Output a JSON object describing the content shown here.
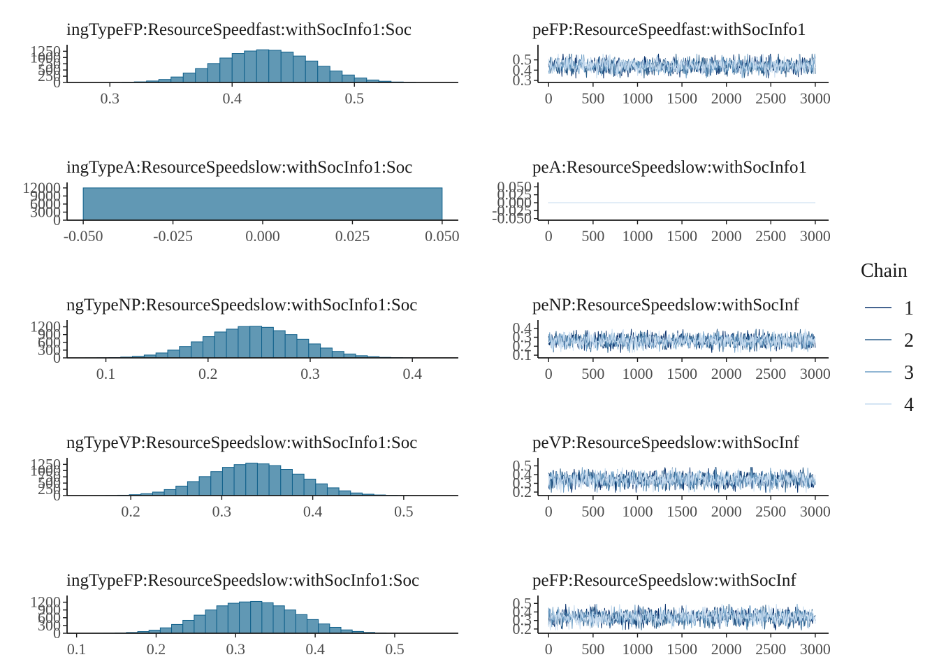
{
  "colors": {
    "hist_fill": "#6198b4",
    "hist_stroke": "#0f5f8a",
    "axis": "#1a1a1a",
    "chain_1": "#08306b",
    "chain_2": "#2c5f8a",
    "chain_3": "#6f9fc6",
    "chain_4": "#c6dbef"
  },
  "legend": {
    "title": "Chain",
    "items": [
      "1",
      "2",
      "3",
      "4"
    ]
  },
  "chart_data": [
    {
      "type": "bar",
      "kind": "histogram",
      "title": "ingTypeFP:ResourceSpeedfast:withSocInfo1:Soc",
      "xlim": [
        0.265,
        0.585
      ],
      "ylim": [
        0,
        1400
      ],
      "xticks": [
        0.3,
        0.4,
        0.5
      ],
      "xtick_labels": [
        "0.3",
        "0.4",
        "0.5"
      ],
      "yticks": [
        0,
        250,
        500,
        750,
        1000,
        1250
      ],
      "ytick_labels": [
        "0",
        "250",
        "500",
        "750",
        "1000",
        "1250"
      ],
      "bin_start": 0.3,
      "bin_width": 0.01,
      "values": [
        3,
        10,
        25,
        60,
        120,
        220,
        380,
        560,
        760,
        980,
        1160,
        1260,
        1310,
        1290,
        1220,
        1060,
        860,
        650,
        460,
        300,
        180,
        100,
        50,
        20,
        8
      ]
    },
    {
      "type": "line",
      "kind": "trace",
      "title": "peFP:ResourceSpeedfast:withSocInfo1",
      "xlim": [
        -120,
        3150
      ],
      "ylim": [
        0.28,
        0.62
      ],
      "xticks": [
        0,
        500,
        1000,
        1500,
        2000,
        2500,
        3000
      ],
      "xtick_labels": [
        "0",
        "500",
        "1000",
        "1500",
        "2000",
        "2500",
        "3000"
      ],
      "yticks": [
        0.3,
        0.4,
        0.5
      ],
      "ytick_labels": [
        "0.3",
        "0.4",
        "0.5"
      ],
      "iterations": 3000,
      "chains": [
        "1",
        "2",
        "3",
        "4"
      ],
      "center": 0.44,
      "spread": 0.045,
      "constant": false
    },
    {
      "type": "bar",
      "kind": "histogram",
      "title": "ingTypeA:ResourceSpeedslow:withSocInfo1:Soc",
      "xlim": [
        -0.0545,
        0.0545
      ],
      "ylim": [
        0,
        13000
      ],
      "xticks": [
        -0.05,
        -0.025,
        0,
        0.025,
        0.05
      ],
      "xtick_labels": [
        "-0.050",
        "-0.025",
        "0.000",
        "0.025",
        "0.050"
      ],
      "yticks": [
        0,
        3000,
        6000,
        9000,
        12000
      ],
      "ytick_labels": [
        "0",
        "3000",
        "6000",
        "9000",
        "12000"
      ],
      "bin_start": -0.05,
      "bin_width": 0.1,
      "values": [
        12000
      ]
    },
    {
      "type": "line",
      "kind": "trace",
      "title": "peA:ResourceSpeedslow:withSocInfo1",
      "xlim": [
        -120,
        3150
      ],
      "ylim": [
        -0.055,
        0.055
      ],
      "xticks": [
        0,
        500,
        1000,
        1500,
        2000,
        2500,
        3000
      ],
      "xtick_labels": [
        "0",
        "500",
        "1000",
        "1500",
        "2000",
        "2500",
        "3000"
      ],
      "yticks": [
        -0.05,
        -0.025,
        0,
        0.025,
        0.05
      ],
      "ytick_labels": [
        "-0.050",
        "-0.025",
        "0.000",
        "0.025",
        "0.050"
      ],
      "iterations": 3000,
      "chains": [
        "1",
        "2",
        "3",
        "4"
      ],
      "center": 0.0,
      "spread": 0,
      "constant": true
    },
    {
      "type": "bar",
      "kind": "histogram",
      "title": "ngTypeNP:ResourceSpeedslow:withSocInfo1:Soc",
      "xlim": [
        0.062,
        0.445
      ],
      "ylim": [
        0,
        1350
      ],
      "xticks": [
        0.1,
        0.2,
        0.3,
        0.4
      ],
      "xtick_labels": [
        "0.1",
        "0.2",
        "0.3",
        "0.4"
      ],
      "yticks": [
        0,
        300,
        600,
        900,
        1200
      ],
      "ytick_labels": [
        "0",
        "300",
        "600",
        "900",
        "1200"
      ],
      "bin_start": 0.08,
      "bin_width": 0.0115,
      "values": [
        2,
        5,
        12,
        30,
        60,
        110,
        190,
        300,
        440,
        620,
        820,
        1000,
        1110,
        1210,
        1220,
        1180,
        1050,
        900,
        720,
        540,
        380,
        250,
        150,
        85,
        45,
        20,
        8,
        3
      ]
    },
    {
      "type": "line",
      "kind": "trace",
      "title": "peNP:ResourceSpeedslow:withSocInf",
      "xlim": [
        -120,
        3150
      ],
      "ylim": [
        0.07,
        0.46
      ],
      "xticks": [
        0,
        500,
        1000,
        1500,
        2000,
        2500,
        3000
      ],
      "xtick_labels": [
        "0",
        "500",
        "1000",
        "1500",
        "2000",
        "2500",
        "3000"
      ],
      "yticks": [
        0.1,
        0.2,
        0.3,
        0.4
      ],
      "ytick_labels": [
        "0.1",
        "0.2",
        "0.3",
        "0.4"
      ],
      "iterations": 3000,
      "chains": [
        "1",
        "2",
        "3",
        "4"
      ],
      "center": 0.26,
      "spread": 0.05,
      "constant": false
    },
    {
      "type": "bar",
      "kind": "histogram",
      "title": "ngTypeVP:ResourceSpeedslow:withSocInfo1:Soc",
      "xlim": [
        0.13,
        0.56
      ],
      "ylim": [
        0,
        1400
      ],
      "xticks": [
        0.2,
        0.3,
        0.4,
        0.5
      ],
      "xtick_labels": [
        "0.2",
        "0.3",
        "0.4",
        "0.5"
      ],
      "yticks": [
        0,
        250,
        500,
        750,
        1000,
        1250
      ],
      "ytick_labels": [
        "0",
        "250",
        "500",
        "750",
        "1000",
        "1250"
      ],
      "bin_start": 0.16,
      "bin_width": 0.0128,
      "values": [
        2,
        6,
        15,
        35,
        75,
        140,
        240,
        380,
        560,
        760,
        960,
        1130,
        1240,
        1300,
        1270,
        1200,
        1050,
        860,
        660,
        470,
        310,
        190,
        105,
        55,
        25,
        10,
        4
      ]
    },
    {
      "type": "line",
      "kind": "trace",
      "title": "peVP:ResourceSpeedslow:withSocInf",
      "xlim": [
        -120,
        3150
      ],
      "ylim": [
        0.16,
        0.56
      ],
      "xticks": [
        0,
        500,
        1000,
        1500,
        2000,
        2500,
        3000
      ],
      "xtick_labels": [
        "0",
        "500",
        "1000",
        "1500",
        "2000",
        "2500",
        "3000"
      ],
      "yticks": [
        0.2,
        0.3,
        0.4,
        0.5
      ],
      "ytick_labels": [
        "0.2",
        "0.3",
        "0.4",
        "0.5"
      ],
      "iterations": 3000,
      "chains": [
        "1",
        "2",
        "3",
        "4"
      ],
      "center": 0.34,
      "spread": 0.055,
      "constant": false
    },
    {
      "type": "bar",
      "kind": "histogram",
      "title": "ingTypeFP:ResourceSpeedslow:withSocInfo1:Soc",
      "xlim": [
        0.088,
        0.58
      ],
      "ylim": [
        0,
        1350
      ],
      "xticks": [
        0.1,
        0.2,
        0.3,
        0.4,
        0.5
      ],
      "xtick_labels": [
        "0.1",
        "0.2",
        "0.3",
        "0.4",
        "0.5"
      ],
      "yticks": [
        0,
        300,
        600,
        900,
        1200
      ],
      "ytick_labels": [
        "0",
        "300",
        "600",
        "900",
        "1200"
      ],
      "bin_start": 0.12,
      "bin_width": 0.0142,
      "values": [
        2,
        5,
        14,
        30,
        65,
        120,
        210,
        340,
        500,
        700,
        900,
        1060,
        1160,
        1210,
        1230,
        1180,
        1060,
        900,
        720,
        530,
        360,
        230,
        130,
        70,
        32,
        12,
        4
      ]
    },
    {
      "type": "line",
      "kind": "trace",
      "title": "peFP:ResourceSpeedslow:withSocInf",
      "xlim": [
        -120,
        3150
      ],
      "ylim": [
        0.15,
        0.56
      ],
      "xticks": [
        0,
        500,
        1000,
        1500,
        2000,
        2500,
        3000
      ],
      "xtick_labels": [
        "0",
        "500",
        "1000",
        "1500",
        "2000",
        "2500",
        "3000"
      ],
      "yticks": [
        0.2,
        0.3,
        0.4,
        0.5
      ],
      "ytick_labels": [
        "0.2",
        "0.3",
        "0.4",
        "0.5"
      ],
      "iterations": 3000,
      "chains": [
        "1",
        "2",
        "3",
        "4"
      ],
      "center": 0.34,
      "spread": 0.058,
      "constant": false
    }
  ]
}
